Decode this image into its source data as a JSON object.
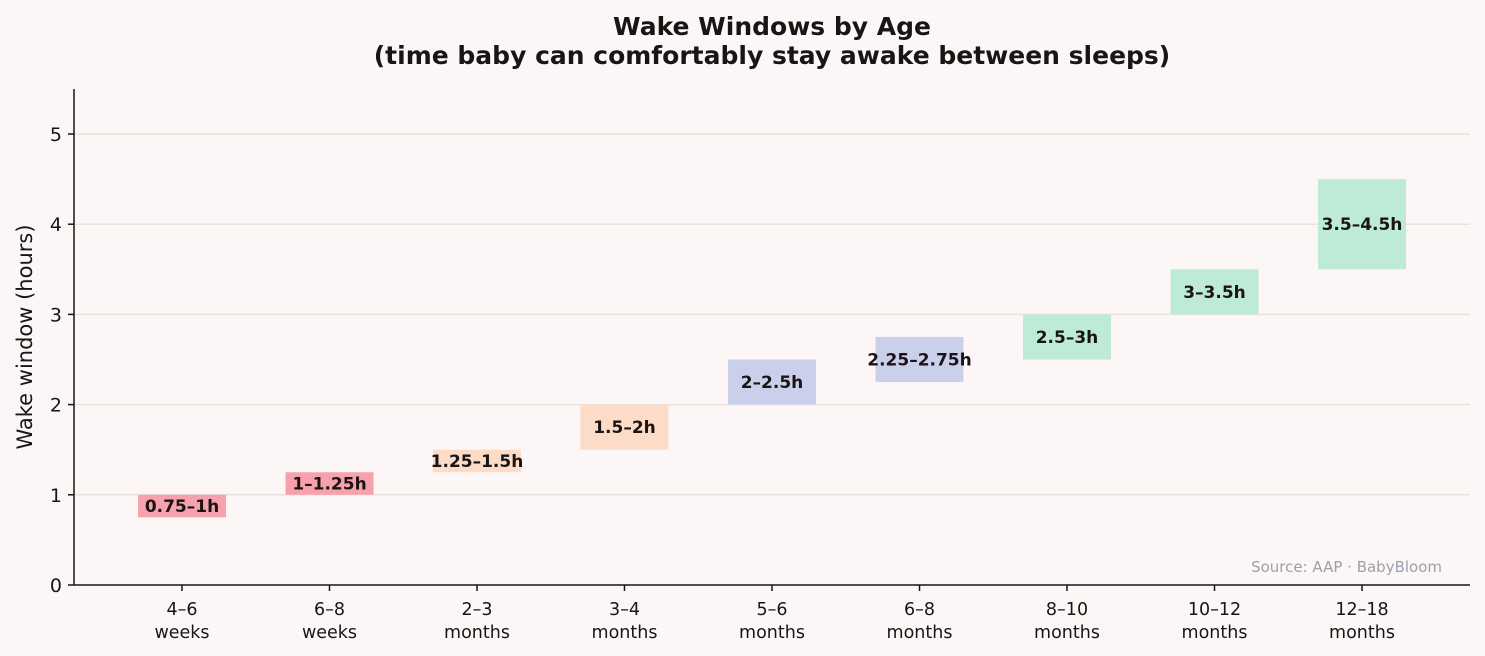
{
  "chart_data": {
    "type": "bar",
    "subtype": "floating-range",
    "title": "Wake Windows by Age",
    "subtitle": "(time baby can comfortably stay awake between sleeps)",
    "xlabel": "",
    "ylabel": "Wake window (hours)",
    "ylim": [
      0,
      5.5
    ],
    "yticks": [
      0,
      1,
      2,
      3,
      4,
      5
    ],
    "grid": true,
    "categories": [
      [
        "4–6",
        "weeks"
      ],
      [
        "6–8",
        "weeks"
      ],
      [
        "2–3",
        "months"
      ],
      [
        "3–4",
        "months"
      ],
      [
        "5–6",
        "months"
      ],
      [
        "6–8",
        "months"
      ],
      [
        "8–10",
        "months"
      ],
      [
        "10–12",
        "months"
      ],
      [
        "12–18",
        "months"
      ]
    ],
    "ranges": [
      {
        "low": 0.75,
        "high": 1.0,
        "label": "0.75–1h",
        "color": "#f7a1ac"
      },
      {
        "low": 1.0,
        "high": 1.25,
        "label": "1–1.25h",
        "color": "#f7a1ac"
      },
      {
        "low": 1.25,
        "high": 1.5,
        "label": "1.25–1.5h",
        "color": "#fcdcc6"
      },
      {
        "low": 1.5,
        "high": 2.0,
        "label": "1.5–2h",
        "color": "#fcdcc6"
      },
      {
        "low": 2.0,
        "high": 2.5,
        "label": "2–2.5h",
        "color": "#cad0eb"
      },
      {
        "low": 2.25,
        "high": 2.75,
        "label": "2.25–2.75h",
        "color": "#cad0eb"
      },
      {
        "low": 2.5,
        "high": 3.0,
        "label": "2.5–3h",
        "color": "#beead8"
      },
      {
        "low": 3.0,
        "high": 3.5,
        "label": "3–3.5h",
        "color": "#beead8"
      },
      {
        "low": 3.5,
        "high": 4.5,
        "label": "3.5–4.5h",
        "color": "#beead8"
      }
    ],
    "annotation": "Source: AAP · BabyBloom"
  },
  "colors": {
    "background": "#fcf7f6",
    "text": "#1a1414",
    "grid": "#e7e1df",
    "source_text": "#9aa0ad"
  }
}
